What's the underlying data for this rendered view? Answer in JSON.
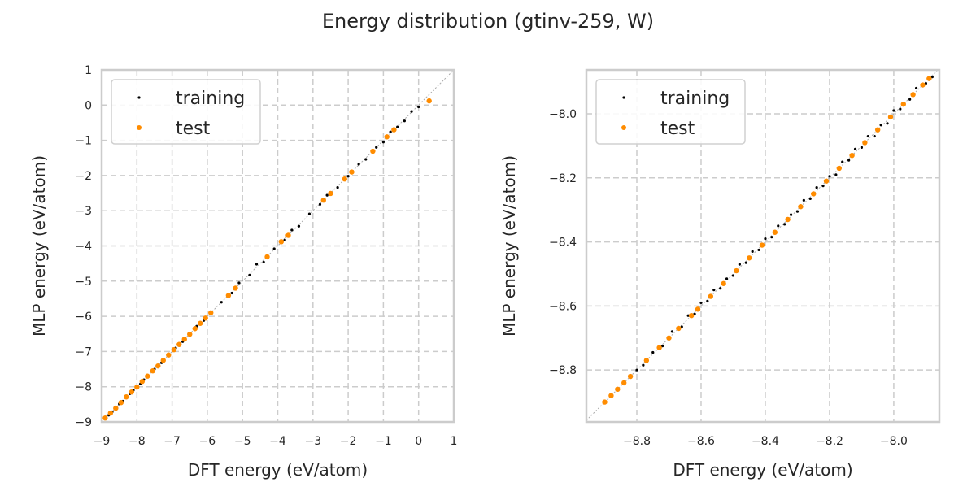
{
  "chart_data": {
    "title": "Energy distribution (gtinv-259, W)",
    "colors": {
      "training": "#000000",
      "test": "#ff8c00",
      "grid": "#cccccc",
      "diagonal": "#aaaaaa"
    },
    "panels": [
      {
        "type": "scatter",
        "xlabel": "DFT energy (eV/atom)",
        "ylabel": "MLP energy (eV/atom)",
        "xlim": [
          -9,
          1
        ],
        "ylim": [
          -9,
          1
        ],
        "grid": true,
        "legend_placement": "top-left",
        "xticks": [
          -9,
          -8,
          -7,
          -6,
          -5,
          -4,
          -3,
          -2,
          -1,
          0,
          1
        ],
        "xtick_labels": [
          "−9",
          "−8",
          "−7",
          "−6",
          "−5",
          "−4",
          "−3",
          "−2",
          "−1",
          "0",
          "1"
        ],
        "yticks": [
          -9,
          -8,
          -7,
          -6,
          -5,
          -4,
          -3,
          -2,
          -1,
          0,
          1
        ],
        "ytick_labels": [
          "−9",
          "−8",
          "−7",
          "−6",
          "−5",
          "−4",
          "−3",
          "−2",
          "−1",
          "0",
          "1"
        ],
        "series": [
          {
            "name": "training",
            "points": [
              [
                -8.9,
                -8.9
              ],
              [
                -8.8,
                -8.81
              ],
              [
                -8.7,
                -8.71
              ],
              [
                -8.6,
                -8.6
              ],
              [
                -8.5,
                -8.49
              ],
              [
                -8.4,
                -8.41
              ],
              [
                -8.3,
                -8.31
              ],
              [
                -8.2,
                -8.2
              ],
              [
                -8.1,
                -8.1
              ],
              [
                -7.9,
                -7.92
              ],
              [
                -7.8,
                -7.8
              ],
              [
                -7.7,
                -7.69
              ],
              [
                -7.5,
                -7.5
              ],
              [
                -7.3,
                -7.32
              ],
              [
                -7.1,
                -7.08
              ],
              [
                -6.9,
                -6.9
              ],
              [
                -6.7,
                -6.72
              ],
              [
                -6.5,
                -6.5
              ],
              [
                -6.3,
                -6.28
              ],
              [
                -6.1,
                -6.12
              ],
              [
                -5.9,
                -5.88
              ],
              [
                -5.6,
                -5.6
              ],
              [
                -5.3,
                -5.34
              ],
              [
                -5.1,
                -5.05
              ],
              [
                -4.8,
                -4.83
              ],
              [
                -4.6,
                -4.52
              ],
              [
                -4.4,
                -4.46
              ],
              [
                -4.1,
                -4.08
              ],
              [
                -3.8,
                -3.83
              ],
              [
                -3.6,
                -3.55
              ],
              [
                -3.4,
                -3.44
              ],
              [
                -3.1,
                -3.09
              ],
              [
                -2.8,
                -2.82
              ],
              [
                -2.6,
                -2.56
              ],
              [
                -2.3,
                -2.34
              ],
              [
                -2.0,
                -2.02
              ],
              [
                -1.7,
                -1.68
              ],
              [
                -1.5,
                -1.54
              ],
              [
                -1.2,
                -1.2
              ],
              [
                -1.0,
                -1.05
              ],
              [
                -0.8,
                -0.76
              ],
              [
                -0.6,
                -0.62
              ],
              [
                -0.4,
                -0.45
              ],
              [
                -0.2,
                -0.18
              ],
              [
                0.0,
                -0.05
              ]
            ]
          },
          {
            "name": "test",
            "points": [
              [
                -8.9,
                -8.89
              ],
              [
                -8.75,
                -8.75
              ],
              [
                -8.6,
                -8.61
              ],
              [
                -8.45,
                -8.45
              ],
              [
                -8.3,
                -8.29
              ],
              [
                -8.15,
                -8.15
              ],
              [
                -8.0,
                -8.01
              ],
              [
                -7.85,
                -7.85
              ],
              [
                -7.7,
                -7.7
              ],
              [
                -7.55,
                -7.55
              ],
              [
                -7.4,
                -7.41
              ],
              [
                -7.25,
                -7.25
              ],
              [
                -7.1,
                -7.1
              ],
              [
                -6.95,
                -6.95
              ],
              [
                -6.8,
                -6.8
              ],
              [
                -6.65,
                -6.65
              ],
              [
                -6.5,
                -6.51
              ],
              [
                -6.35,
                -6.35
              ],
              [
                -6.2,
                -6.2
              ],
              [
                -6.05,
                -6.05
              ],
              [
                -5.9,
                -5.9
              ],
              [
                -5.4,
                -5.41
              ],
              [
                -5.2,
                -5.2
              ],
              [
                -4.3,
                -4.31
              ],
              [
                -3.9,
                -3.88
              ],
              [
                -3.7,
                -3.7
              ],
              [
                -2.7,
                -2.7
              ],
              [
                -2.5,
                -2.51
              ],
              [
                -2.1,
                -2.1
              ],
              [
                -1.9,
                -1.9
              ],
              [
                -1.3,
                -1.31
              ],
              [
                -0.9,
                -0.9
              ],
              [
                -0.7,
                -0.7
              ],
              [
                0.3,
                0.12
              ]
            ]
          }
        ]
      },
      {
        "type": "scatter",
        "xlabel": "DFT energy (eV/atom)",
        "ylabel": "MLP energy (eV/atom)",
        "xlim": [
          -8.957,
          -7.858
        ],
        "ylim": [
          -8.962,
          -7.863
        ],
        "grid": true,
        "legend_placement": "top-left",
        "xticks": [
          -8.8,
          -8.6,
          -8.4,
          -8.2,
          -8.0
        ],
        "xtick_labels": [
          "−8.8",
          "−8.6",
          "−8.4",
          "−8.2",
          "−8.0"
        ],
        "yticks": [
          -8.8,
          -8.6,
          -8.4,
          -8.2,
          -8.0
        ],
        "ytick_labels": [
          "−8.8",
          "−8.6",
          "−8.4",
          "−8.2",
          "−8.0"
        ],
        "series": [
          {
            "name": "training",
            "points": [
              [
                -8.8,
                -8.8
              ],
              [
                -8.78,
                -8.785
              ],
              [
                -8.75,
                -8.745
              ],
              [
                -8.72,
                -8.725
              ],
              [
                -8.69,
                -8.68
              ],
              [
                -8.66,
                -8.665
              ],
              [
                -8.64,
                -8.63
              ],
              [
                -8.62,
                -8.625
              ],
              [
                -8.6,
                -8.59
              ],
              [
                -8.58,
                -8.585
              ],
              [
                -8.56,
                -8.55
              ],
              [
                -8.54,
                -8.545
              ],
              [
                -8.52,
                -8.515
              ],
              [
                -8.5,
                -8.505
              ],
              [
                -8.48,
                -8.47
              ],
              [
                -8.46,
                -8.465
              ],
              [
                -8.44,
                -8.43
              ],
              [
                -8.42,
                -8.425
              ],
              [
                -8.4,
                -8.39
              ],
              [
                -8.38,
                -8.385
              ],
              [
                -8.36,
                -8.35
              ],
              [
                -8.34,
                -8.345
              ],
              [
                -8.32,
                -8.315
              ],
              [
                -8.3,
                -8.305
              ],
              [
                -8.28,
                -8.27
              ],
              [
                -8.26,
                -8.265
              ],
              [
                -8.24,
                -8.23
              ],
              [
                -8.22,
                -8.225
              ],
              [
                -8.2,
                -8.195
              ],
              [
                -8.18,
                -8.19
              ],
              [
                -8.16,
                -8.15
              ],
              [
                -8.14,
                -8.145
              ],
              [
                -8.12,
                -8.11
              ],
              [
                -8.1,
                -8.105
              ],
              [
                -8.08,
                -8.07
              ],
              [
                -8.06,
                -8.07
              ],
              [
                -8.04,
                -8.035
              ],
              [
                -8.02,
                -8.03
              ],
              [
                -8.0,
                -7.99
              ],
              [
                -7.98,
                -7.985
              ],
              [
                -7.95,
                -7.955
              ],
              [
                -7.93,
                -7.92
              ],
              [
                -7.9,
                -7.905
              ],
              [
                -7.88,
                -7.885
              ]
            ]
          },
          {
            "name": "test",
            "points": [
              [
                -8.9,
                -8.9
              ],
              [
                -8.88,
                -8.88
              ],
              [
                -8.86,
                -8.86
              ],
              [
                -8.84,
                -8.84
              ],
              [
                -8.82,
                -8.82
              ],
              [
                -8.77,
                -8.77
              ],
              [
                -8.73,
                -8.73
              ],
              [
                -8.7,
                -8.7
              ],
              [
                -8.67,
                -8.67
              ],
              [
                -8.63,
                -8.63
              ],
              [
                -8.61,
                -8.61
              ],
              [
                -8.57,
                -8.57
              ],
              [
                -8.53,
                -8.53
              ],
              [
                -8.49,
                -8.49
              ],
              [
                -8.45,
                -8.45
              ],
              [
                -8.41,
                -8.41
              ],
              [
                -8.37,
                -8.37
              ],
              [
                -8.33,
                -8.33
              ],
              [
                -8.29,
                -8.29
              ],
              [
                -8.25,
                -8.25
              ],
              [
                -8.21,
                -8.21
              ],
              [
                -8.17,
                -8.17
              ],
              [
                -8.13,
                -8.13
              ],
              [
                -8.09,
                -8.09
              ],
              [
                -8.05,
                -8.05
              ],
              [
                -8.01,
                -8.01
              ],
              [
                -7.97,
                -7.97
              ],
              [
                -7.94,
                -7.94
              ],
              [
                -7.91,
                -7.91
              ],
              [
                -7.89,
                -7.89
              ]
            ]
          }
        ]
      }
    ]
  }
}
